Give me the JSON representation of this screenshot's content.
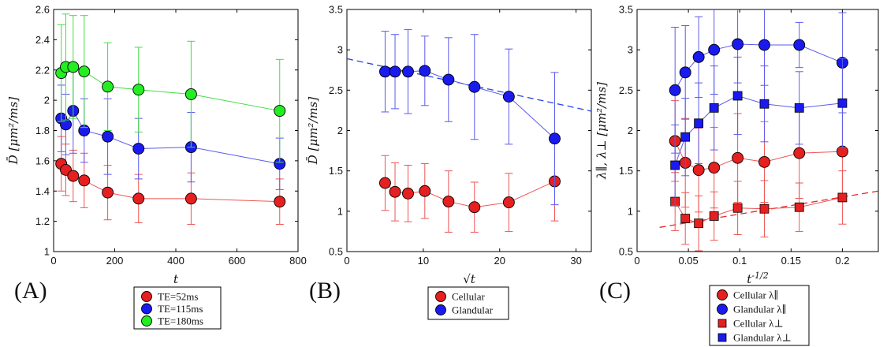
{
  "chart_data": [
    {
      "id": "A",
      "type": "scatter",
      "panel_label": "(A)",
      "xlabel": "t",
      "ylabel": "D̄ [μm²/ms]",
      "xlim": [
        0,
        800
      ],
      "ylim": [
        1.0,
        2.6
      ],
      "xticks": [
        0,
        200,
        400,
        600,
        800
      ],
      "yticks": [
        1.0,
        1.2,
        1.4,
        1.6,
        1.8,
        2.0,
        2.2,
        2.4,
        2.6
      ],
      "xtick_labels": [
        "0",
        "200",
        "400",
        "600",
        "800"
      ],
      "ytick_labels": [
        "1",
        "1.2",
        "1.4",
        "1.6",
        "1.8",
        "2",
        "2.2",
        "2.4",
        "2.6"
      ],
      "series": [
        {
          "name": "TE=52ms",
          "color": "#e62020",
          "line_color": "#ee5555",
          "marker": "circle",
          "x": [
            25,
            40,
            64,
            100,
            177,
            278,
            450,
            740
          ],
          "y": [
            1.58,
            1.54,
            1.5,
            1.47,
            1.39,
            1.35,
            1.35,
            1.33
          ],
          "err": [
            0.18,
            0.17,
            0.17,
            0.18,
            0.18,
            0.16,
            0.17,
            0.15
          ]
        },
        {
          "name": "TE=115ms",
          "color": "#1a1aee",
          "line_color": "#5a5aee",
          "marker": "circle",
          "x": [
            25,
            40,
            64,
            100,
            177,
            278,
            450,
            740
          ],
          "y": [
            1.88,
            1.84,
            1.93,
            1.8,
            1.76,
            1.68,
            1.69,
            1.58
          ],
          "err": [
            0.22,
            0.2,
            0.28,
            0.21,
            0.25,
            0.2,
            0.23,
            0.17
          ]
        },
        {
          "name": "TE=180ms",
          "color": "#22ee22",
          "line_color": "#44dd44",
          "marker": "circle",
          "x": [
            25,
            40,
            64,
            100,
            177,
            278,
            450,
            740
          ],
          "y": [
            2.18,
            2.22,
            2.22,
            2.19,
            2.09,
            2.07,
            2.04,
            1.93
          ],
          "err": [
            0.32,
            0.35,
            0.34,
            0.37,
            0.29,
            0.28,
            0.35,
            0.34
          ]
        }
      ],
      "trend_lines": []
    },
    {
      "id": "B",
      "type": "scatter",
      "panel_label": "(B)",
      "xlabel": "√t",
      "ylabel": "D̄ [μm²/ms]",
      "xlim": [
        0,
        32
      ],
      "ylim": [
        0.5,
        3.5
      ],
      "xticks": [
        0,
        10,
        20,
        30
      ],
      "yticks": [
        0.5,
        1.0,
        1.5,
        2.0,
        2.5,
        3.0,
        3.5
      ],
      "xtick_labels": [
        "0",
        "10",
        "20",
        "30"
      ],
      "ytick_labels": [
        "0.5",
        "1",
        "1.5",
        "2",
        "2.5",
        "3",
        "3.5"
      ],
      "series": [
        {
          "name": "Cellular",
          "color": "#e62020",
          "line_color": "#ee5555",
          "marker": "circle",
          "x": [
            5.0,
            6.3,
            8.0,
            10.2,
            13.3,
            16.7,
            21.2,
            27.2
          ],
          "y": [
            1.35,
            1.24,
            1.22,
            1.25,
            1.12,
            1.05,
            1.11,
            1.37
          ],
          "err": [
            0.34,
            0.36,
            0.35,
            0.34,
            0.38,
            0.31,
            0.36,
            0.49
          ]
        },
        {
          "name": "Glandular",
          "color": "#1a1aee",
          "line_color": "#5a5aee",
          "marker": "circle",
          "x": [
            5.0,
            6.3,
            8.0,
            10.2,
            13.3,
            16.7,
            21.2,
            27.2
          ],
          "y": [
            2.73,
            2.73,
            2.73,
            2.74,
            2.63,
            2.54,
            2.42,
            1.9
          ],
          "err": [
            0.5,
            0.46,
            0.52,
            0.43,
            0.52,
            0.65,
            0.59,
            0.82
          ]
        }
      ],
      "trend_lines": [
        {
          "color": "#2244ee",
          "dash": "8,5",
          "x": [
            0,
            32
          ],
          "y": [
            2.89,
            2.24
          ]
        }
      ]
    },
    {
      "id": "C",
      "type": "scatter",
      "panel_label": "(C)",
      "xlabel": "t^{-1/2}",
      "ylabel": "λ∥, λ⊥ [μm²/ms]",
      "xlim": [
        0,
        0.235
      ],
      "ylim": [
        0.5,
        3.5
      ],
      "xticks": [
        0,
        0.05,
        0.1,
        0.15,
        0.2
      ],
      "yticks": [
        0.5,
        1.0,
        1.5,
        2.0,
        2.5,
        3.0,
        3.5
      ],
      "xtick_labels": [
        "0",
        "0.05",
        "0.1",
        "0.15",
        "0.2"
      ],
      "ytick_labels": [
        "0.5",
        "1",
        "1.5",
        "2",
        "2.5",
        "3",
        "3.5"
      ],
      "series": [
        {
          "name": "Cellular λ∥",
          "color": "#e62020",
          "line_color": "#ee5555",
          "marker": "circle",
          "x": [
            0.037,
            0.047,
            0.06,
            0.075,
            0.098,
            0.124,
            0.158,
            0.2
          ],
          "y": [
            1.87,
            1.6,
            1.51,
            1.54,
            1.66,
            1.61,
            1.72,
            1.74
          ],
          "err": [
            0.5,
            0.55,
            0.52,
            0.5,
            0.55,
            0.5,
            0.56,
            0.6
          ]
        },
        {
          "name": "Glandular λ∥",
          "color": "#1a1aee",
          "line_color": "#5a5aee",
          "marker": "circle",
          "x": [
            0.037,
            0.047,
            0.06,
            0.075,
            0.098,
            0.124,
            0.158,
            0.2
          ],
          "y": [
            2.5,
            2.72,
            2.91,
            3.0,
            3.07,
            3.06,
            3.06,
            2.84
          ],
          "err": [
            0.78,
            0.58,
            0.5,
            0.55,
            0.48,
            0.5,
            0.28,
            0.62
          ]
        },
        {
          "name": "Cellular λ⊥",
          "color": "#e62020",
          "line_color": "#ee5555",
          "marker": "square",
          "x": [
            0.037,
            0.047,
            0.06,
            0.075,
            0.098,
            0.124,
            0.158,
            0.2
          ],
          "y": [
            1.12,
            0.91,
            0.85,
            0.94,
            1.04,
            1.03,
            1.05,
            1.17
          ],
          "err": [
            0.36,
            0.32,
            0.34,
            0.3,
            0.33,
            0.35,
            0.3,
            0.33
          ]
        },
        {
          "name": "Glandular λ⊥",
          "color": "#1a1aee",
          "line_color": "#5a5aee",
          "marker": "square",
          "x": [
            0.037,
            0.047,
            0.06,
            0.075,
            0.098,
            0.124,
            0.158,
            0.2
          ],
          "y": [
            1.57,
            1.92,
            2.09,
            2.28,
            2.43,
            2.33,
            2.28,
            2.34
          ],
          "err": [
            0.5,
            0.48,
            0.5,
            0.52,
            0.48,
            0.47,
            0.45,
            0.55
          ]
        }
      ],
      "trend_lines": [
        {
          "color": "#ee2222",
          "dash": "8,5",
          "x": [
            0.022,
            0.235
          ],
          "y": [
            0.8,
            1.25
          ]
        }
      ]
    }
  ]
}
